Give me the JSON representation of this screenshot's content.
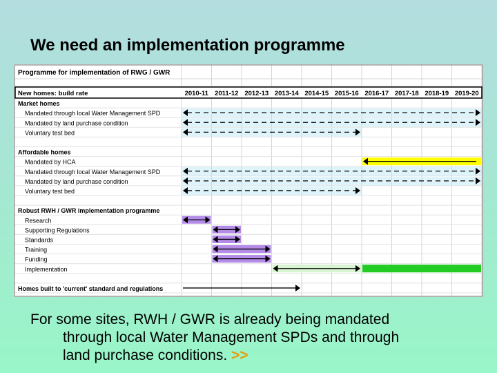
{
  "slide": {
    "title": "We need an implementation programme",
    "caption": {
      "line1": "For some sites, RWH / GWR is already being mandated",
      "line2": "through local Water Management SPDs and through",
      "line3": "land purchase conditions.",
      "link": ">>"
    }
  },
  "colors": {
    "dash_row_fill": "#dff4fa",
    "purple": "#b48ce8",
    "yellow": "#ffff00",
    "light_green": "#d8f4d0",
    "green": "#22cc22"
  },
  "chart_data": {
    "type": "table",
    "title": "Programme for implementation of RWG / GWR",
    "header_label": "New homes: build rate",
    "years": [
      "2010-11",
      "2011-12",
      "2012-13",
      "2013-14",
      "2014-15",
      "2015-16",
      "2016-17",
      "2017-18",
      "2018-19",
      "2019-20"
    ],
    "rows": [
      {
        "label": "Market homes",
        "heading": true
      },
      {
        "label": "Mandated through local Water Management SPD",
        "bar": {
          "style": "dash",
          "start": 0,
          "end": 10,
          "arrow": "both"
        }
      },
      {
        "label": "Mandated by land purchase condition",
        "bar": {
          "style": "dash",
          "start": 0,
          "end": 10,
          "arrow": "both"
        }
      },
      {
        "label": "Voluntary test bed",
        "bar": {
          "style": "dash",
          "start": 0,
          "end": 6,
          "arrow": "both"
        }
      },
      {
        "label": "",
        "spacer": true
      },
      {
        "label": "Affordable homes",
        "heading": true
      },
      {
        "label": "Mandated by HCA",
        "bar": {
          "style": "solid",
          "color": "#ffff00",
          "start": 6,
          "end": 10,
          "arrow": "left"
        }
      },
      {
        "label": "Mandated through local Water Management SPD",
        "bar": {
          "style": "dash",
          "start": 0,
          "end": 10,
          "arrow": "both"
        }
      },
      {
        "label": "Mandated by land purchase condition",
        "bar": {
          "style": "dash",
          "start": 0,
          "end": 10,
          "arrow": "both"
        }
      },
      {
        "label": "Voluntary test bed",
        "bar": {
          "style": "dash",
          "start": 0,
          "end": 6,
          "arrow": "both"
        }
      },
      {
        "label": "",
        "spacer": true
      },
      {
        "label": "Robust RWH / GWR implementation programme",
        "heading": true
      },
      {
        "label": "Research",
        "bar": {
          "style": "solid",
          "color": "#b48ce8",
          "start": 0,
          "end": 1,
          "arrow": "both"
        }
      },
      {
        "label": "Supporting Regulations",
        "bar": {
          "style": "solid",
          "color": "#b48ce8",
          "start": 1,
          "end": 2,
          "arrow": "both"
        }
      },
      {
        "label": "Standards",
        "bar": {
          "style": "solid",
          "color": "#b48ce8",
          "start": 1,
          "end": 2,
          "arrow": "both"
        }
      },
      {
        "label": "Training",
        "bar": {
          "style": "solid",
          "color": "#b48ce8",
          "start": 1,
          "end": 3,
          "arrow": "both"
        }
      },
      {
        "label": "Funding",
        "bar": {
          "style": "solid",
          "color": "#b48ce8",
          "start": 1,
          "end": 3,
          "arrow": "both"
        }
      },
      {
        "label": "Implementation",
        "bar": {
          "style": "solid",
          "color": "#d8f4d0",
          "start": 3,
          "end": 6,
          "arrow": "both"
        },
        "bar2": {
          "style": "solid",
          "color": "#22cc22",
          "start": 6,
          "end": 10
        }
      },
      {
        "label": "",
        "spacer": true
      },
      {
        "label": "Homes built to 'current' standard and regulations",
        "heading": true,
        "bar": {
          "style": "line",
          "start": 0,
          "end": 4,
          "arrow": "right"
        }
      }
    ]
  }
}
